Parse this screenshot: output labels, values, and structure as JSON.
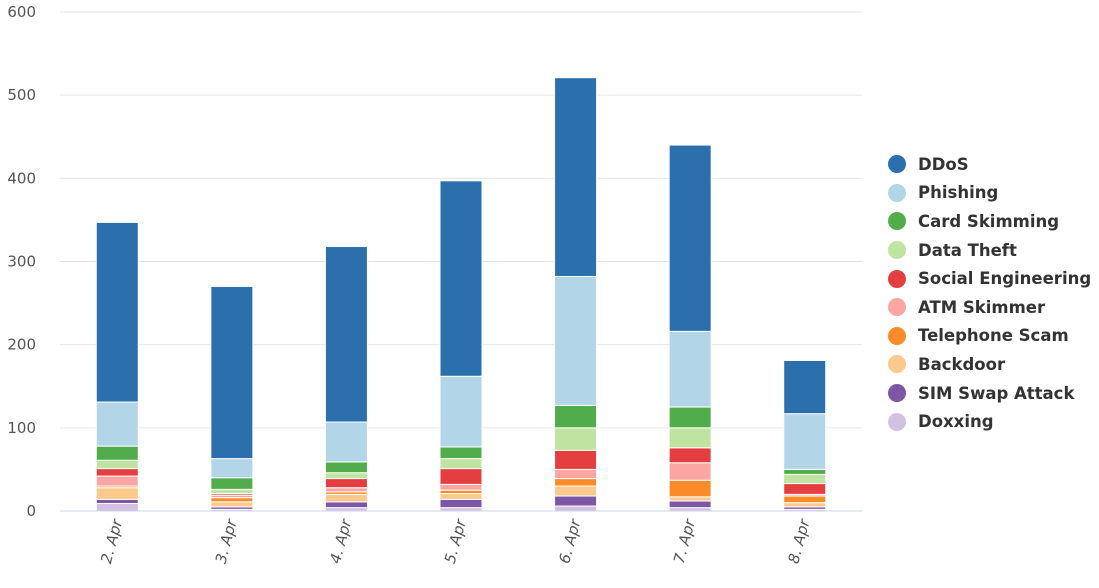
{
  "chart_data": {
    "type": "bar",
    "stacked": true,
    "categories": [
      "2. Apr",
      "3. Apr",
      "4. Apr",
      "5. Apr",
      "6. Apr",
      "7. Apr",
      "8. Apr"
    ],
    "ylim": [
      0,
      600
    ],
    "yticks": [
      0,
      100,
      200,
      300,
      400,
      500,
      600
    ],
    "grid": true,
    "legend_position": "right",
    "xlabel": "",
    "ylabel": "",
    "series": [
      {
        "name": "Doxxing",
        "color": "#d4c1e2",
        "values": [
          9,
          2,
          4,
          4,
          6,
          4,
          2
        ]
      },
      {
        "name": "SIM Swap Attack",
        "color": "#7d56a6",
        "values": [
          5,
          3,
          7,
          10,
          12,
          8,
          3
        ]
      },
      {
        "name": "Backdoor",
        "color": "#fcc98c",
        "values": [
          14,
          6,
          9,
          7,
          12,
          5,
          5
        ]
      },
      {
        "name": "Telephone Scam",
        "color": "#f98c28",
        "values": [
          2,
          5,
          3,
          4,
          9,
          20,
          8
        ]
      },
      {
        "name": "ATM Skimmer",
        "color": "#fba6a3",
        "values": [
          12,
          3,
          5,
          7,
          11,
          21,
          2
        ]
      },
      {
        "name": "Social Engineering",
        "color": "#e53e40",
        "values": [
          9,
          2,
          11,
          19,
          23,
          18,
          13
        ]
      },
      {
        "name": "Data Theft",
        "color": "#bfe3a0",
        "values": [
          10,
          5,
          7,
          12,
          27,
          24,
          11
        ]
      },
      {
        "name": "Card Skimming",
        "color": "#51ad4b",
        "values": [
          17,
          14,
          13,
          14,
          27,
          25,
          6
        ]
      },
      {
        "name": "Phishing",
        "color": "#b3d5e8",
        "values": [
          53,
          23,
          48,
          85,
          155,
          91,
          67
        ]
      },
      {
        "name": "DDoS",
        "color": "#2b6fad",
        "values": [
          216,
          207,
          211,
          235,
          239,
          224,
          64
        ]
      }
    ],
    "legend_order": [
      "DDoS",
      "Phishing",
      "Card Skimming",
      "Data Theft",
      "Social Engineering",
      "ATM Skimmer",
      "Telephone Scam",
      "Backdoor",
      "SIM Swap Attack",
      "Doxxing"
    ]
  }
}
